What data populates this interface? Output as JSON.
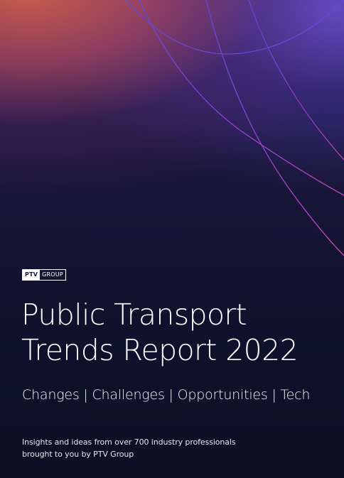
{
  "logo": {
    "brand": "PTV",
    "suffix": "GROUP"
  },
  "title": {
    "line1": "Public Transport",
    "line2": "Trends Report 2022"
  },
  "tagline": "Changes | Challenges | Opportunities | Tech",
  "intro": {
    "line1": "Insights and ideas from over 700 industry professionals",
    "line2": "brought to you by PTV Group"
  },
  "colors": {
    "background": "#0e1028",
    "arc_blue": "#5a4fe0",
    "arc_purple": "#9a3fd8",
    "arc_magenta": "#d24bd0",
    "text": "#ffffff"
  }
}
